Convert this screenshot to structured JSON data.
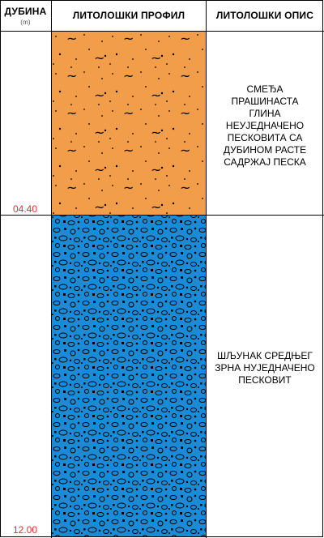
{
  "header": {
    "depth": "ДУБИНА",
    "depth_unit": "(m)",
    "profile": "ЛИТОЛОШКИ ПРОФИЛ",
    "description": "ЛИТОЛОШКИ ОПИС"
  },
  "layers": [
    {
      "depth_label": "04.40",
      "color": "#F29D49",
      "pattern": "clay-dots-tilde",
      "description": [
        "СМЕЂА",
        "ПРАШИНАСТА",
        "ГЛИНА",
        "НЕУЈЕДНАЧЕНО",
        "ПЕСКОВИТА СА",
        "ДУБИНОМ РАСТЕ",
        "САДРЖАЈ ПЕСКА"
      ]
    },
    {
      "depth_label": "12.00",
      "color": "#1A8BD6",
      "pattern": "gravel-pebbles",
      "description": [
        "ШЉУНАК СРЕДЊЕГ",
        "ЗРНА НУЈЕДНАЧЕНО",
        "ПЕСКОВИТ"
      ]
    }
  ]
}
